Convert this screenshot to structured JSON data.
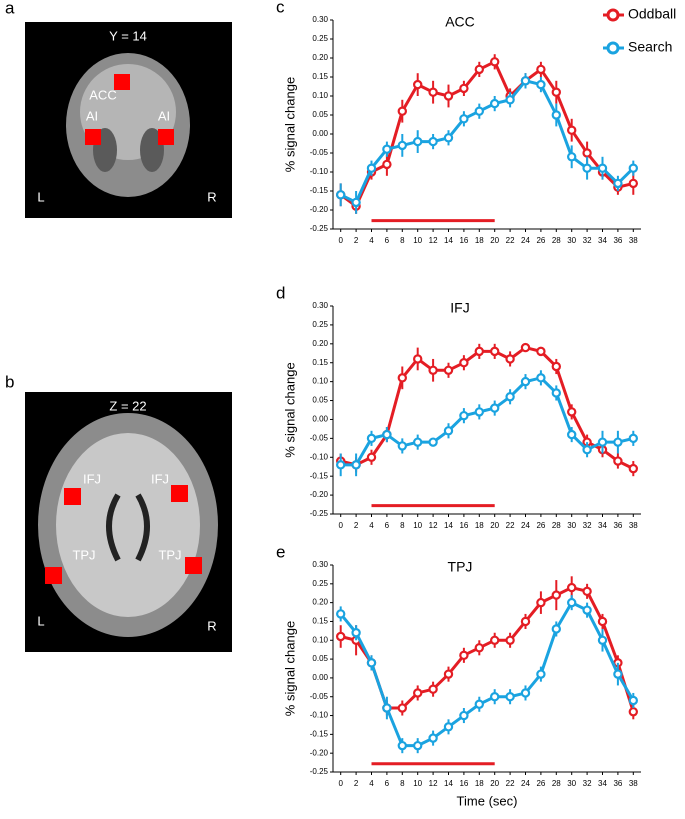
{
  "brain_panels": [
    {
      "letter": "a",
      "title": "Y = 14",
      "regions": [
        "ACC",
        "AI",
        "AI"
      ],
      "left": "L",
      "right": "R"
    },
    {
      "letter": "b",
      "title": "Z = 22",
      "regions": [
        "IFJ",
        "IFJ",
        "TPJ",
        "TPJ"
      ],
      "left": "L",
      "right": "R"
    }
  ],
  "chart_data": [
    {
      "type": "line",
      "panel": "c",
      "title": "ACC",
      "y_label": "% signal change",
      "legend": "upper right",
      "x": [
        0,
        2,
        4,
        6,
        8,
        10,
        12,
        14,
        16,
        18,
        20,
        22,
        24,
        26,
        28,
        30,
        32,
        34,
        36,
        38
      ],
      "xlim": [
        -1,
        39
      ],
      "xticks": [
        0,
        2,
        4,
        6,
        8,
        10,
        12,
        14,
        16,
        18,
        20,
        22,
        24,
        26,
        28,
        30,
        32,
        34,
        36,
        38
      ],
      "ylim": [
        -0.25,
        0.3
      ],
      "yticks": [
        {
          "value": 0.3,
          "label": "0.30"
        },
        {
          "value": 0.25,
          "label": "0.25"
        },
        {
          "value": 0.2,
          "label": "0.20"
        },
        {
          "value": 0.15,
          "label": "0.15"
        },
        {
          "value": 0.1,
          "label": "0.10"
        },
        {
          "value": 0.05,
          "label": "0.05"
        },
        {
          "value": 0,
          "label": "0.00"
        },
        {
          "value": -0.05,
          "label": "-0.05"
        },
        {
          "value": -0.1,
          "label": "-0.10"
        },
        {
          "value": -0.15,
          "label": "-0.15"
        },
        {
          "value": -0.2,
          "label": "-0.20"
        },
        {
          "value": -0.25,
          "label": "-0.25"
        }
      ],
      "stimulus_period": [
        4,
        20
      ],
      "stimulus_color": "#e41d24",
      "series": [
        {
          "name": "Oddball",
          "color": "#e41d24",
          "values": [
            -0.16,
            -0.19,
            -0.1,
            -0.08,
            0.06,
            0.13,
            0.11,
            0.1,
            0.12,
            0.17,
            0.19,
            0.1,
            0.14,
            0.17,
            0.11,
            0.01,
            -0.05,
            -0.1,
            -0.14,
            -0.13
          ],
          "errors": [
            0.03,
            0.02,
            0.02,
            0.03,
            0.03,
            0.03,
            0.03,
            0.03,
            0.02,
            0.02,
            0.02,
            0.02,
            0.02,
            0.02,
            0.03,
            0.03,
            0.03,
            0.02,
            0.02,
            0.03
          ]
        },
        {
          "name": "Search",
          "color": "#1aa3e0",
          "values": [
            -0.16,
            -0.18,
            -0.09,
            -0.04,
            -0.03,
            -0.02,
            -0.02,
            -0.01,
            0.04,
            0.06,
            0.08,
            0.09,
            0.14,
            0.13,
            0.05,
            -0.06,
            -0.09,
            -0.09,
            -0.13,
            -0.09
          ],
          "errors": [
            0.03,
            0.03,
            0.02,
            0.02,
            0.03,
            0.03,
            0.02,
            0.02,
            0.02,
            0.02,
            0.02,
            0.02,
            0.02,
            0.02,
            0.03,
            0.03,
            0.03,
            0.03,
            0.02,
            0.02
          ]
        }
      ]
    },
    {
      "type": "line",
      "panel": "d",
      "title": "IFJ",
      "y_label": "% signal change",
      "x": [
        0,
        2,
        4,
        6,
        8,
        10,
        12,
        14,
        16,
        18,
        20,
        22,
        24,
        26,
        28,
        30,
        32,
        34,
        36,
        38
      ],
      "xlim": [
        -1,
        39
      ],
      "xticks": [
        0,
        2,
        4,
        6,
        8,
        10,
        12,
        14,
        16,
        18,
        20,
        22,
        24,
        26,
        28,
        30,
        32,
        34,
        36,
        38
      ],
      "ylim": [
        -0.25,
        0.3
      ],
      "yticks": [
        {
          "value": 0.3,
          "label": "0.30"
        },
        {
          "value": 0.25,
          "label": "0.25"
        },
        {
          "value": 0.2,
          "label": "0.20"
        },
        {
          "value": 0.15,
          "label": "0.15"
        },
        {
          "value": 0.1,
          "label": "0.10"
        },
        {
          "value": 0.05,
          "label": "0.05"
        },
        {
          "value": 0,
          "label": "0.00"
        },
        {
          "value": -0.05,
          "label": "-0.05"
        },
        {
          "value": -0.1,
          "label": "-0.10"
        },
        {
          "value": -0.15,
          "label": "-0.15"
        },
        {
          "value": -0.2,
          "label": "-0.20"
        },
        {
          "value": -0.25,
          "label": "-0.25"
        }
      ],
      "stimulus_period": [
        4,
        20
      ],
      "stimulus_color": "#e41d24",
      "series": [
        {
          "name": "Oddball",
          "color": "#e41d24",
          "values": [
            -0.11,
            -0.12,
            -0.1,
            -0.04,
            0.11,
            0.16,
            0.13,
            0.13,
            0.15,
            0.18,
            0.18,
            0.16,
            0.19,
            0.18,
            0.14,
            0.02,
            -0.06,
            -0.08,
            -0.11,
            -0.13
          ],
          "errors": [
            0.02,
            0.02,
            0.02,
            0.02,
            0.03,
            0.03,
            0.03,
            0.02,
            0.02,
            0.02,
            0.02,
            0.02,
            0.01,
            0.01,
            0.02,
            0.02,
            0.02,
            0.02,
            0.02,
            0.02
          ]
        },
        {
          "name": "Search",
          "color": "#1aa3e0",
          "values": [
            -0.12,
            -0.12,
            -0.05,
            -0.04,
            -0.07,
            -0.06,
            -0.06,
            -0.03,
            0.01,
            0.02,
            0.03,
            0.06,
            0.1,
            0.11,
            0.07,
            -0.04,
            -0.08,
            -0.06,
            -0.06,
            -0.05
          ],
          "errors": [
            0.03,
            0.03,
            0.02,
            0.02,
            0.02,
            0.02,
            0.01,
            0.02,
            0.02,
            0.02,
            0.02,
            0.02,
            0.02,
            0.02,
            0.02,
            0.02,
            0.02,
            0.03,
            0.03,
            0.02
          ]
        }
      ]
    },
    {
      "type": "line",
      "panel": "e",
      "title": "TPJ",
      "y_label": "% signal change",
      "x_label": "Time (sec)",
      "x": [
        0,
        2,
        4,
        6,
        8,
        10,
        12,
        14,
        16,
        18,
        20,
        22,
        24,
        26,
        28,
        30,
        32,
        34,
        36,
        38
      ],
      "xlim": [
        -1,
        39
      ],
      "xticks": [
        0,
        2,
        4,
        6,
        8,
        10,
        12,
        14,
        16,
        18,
        20,
        22,
        24,
        26,
        28,
        30,
        32,
        34,
        36,
        38
      ],
      "ylim": [
        -0.25,
        0.3
      ],
      "yticks": [
        {
          "value": 0.3,
          "label": "0.30"
        },
        {
          "value": 0.25,
          "label": "0.25"
        },
        {
          "value": 0.2,
          "label": "0.20"
        },
        {
          "value": 0.15,
          "label": "0.15"
        },
        {
          "value": 0.1,
          "label": "0.10"
        },
        {
          "value": 0.05,
          "label": "0.05"
        },
        {
          "value": 0,
          "label": "0.00"
        },
        {
          "value": -0.05,
          "label": "-0.05"
        },
        {
          "value": -0.1,
          "label": "-0.10"
        },
        {
          "value": -0.15,
          "label": "-0.15"
        },
        {
          "value": -0.2,
          "label": "-0.20"
        },
        {
          "value": -0.25,
          "label": "-0.25"
        }
      ],
      "stimulus_period": [
        4,
        20
      ],
      "stimulus_color": "#e41d24",
      "series": [
        {
          "name": "Oddball",
          "color": "#e41d24",
          "values": [
            0.11,
            0.1,
            0.04,
            -0.08,
            -0.08,
            -0.04,
            -0.03,
            0.01,
            0.06,
            0.08,
            0.1,
            0.1,
            0.15,
            0.2,
            0.22,
            0.24,
            0.23,
            0.15,
            0.04,
            -0.09
          ],
          "errors": [
            0.03,
            0.04,
            0.02,
            0.02,
            0.02,
            0.02,
            0.02,
            0.02,
            0.02,
            0.02,
            0.02,
            0.02,
            0.02,
            0.03,
            0.04,
            0.03,
            0.02,
            0.02,
            0.02,
            0.02
          ]
        },
        {
          "name": "Search",
          "color": "#1aa3e0",
          "values": [
            0.17,
            0.12,
            0.04,
            -0.08,
            -0.18,
            -0.18,
            -0.16,
            -0.13,
            -0.1,
            -0.07,
            -0.05,
            -0.05,
            -0.04,
            0.01,
            0.13,
            0.2,
            0.18,
            0.1,
            0.01,
            -0.06
          ],
          "errors": [
            0.02,
            0.02,
            0.02,
            0.03,
            0.02,
            0.02,
            0.02,
            0.02,
            0.02,
            0.02,
            0.02,
            0.02,
            0.02,
            0.02,
            0.02,
            0.02,
            0.02,
            0.03,
            0.03,
            0.02
          ]
        }
      ]
    }
  ]
}
